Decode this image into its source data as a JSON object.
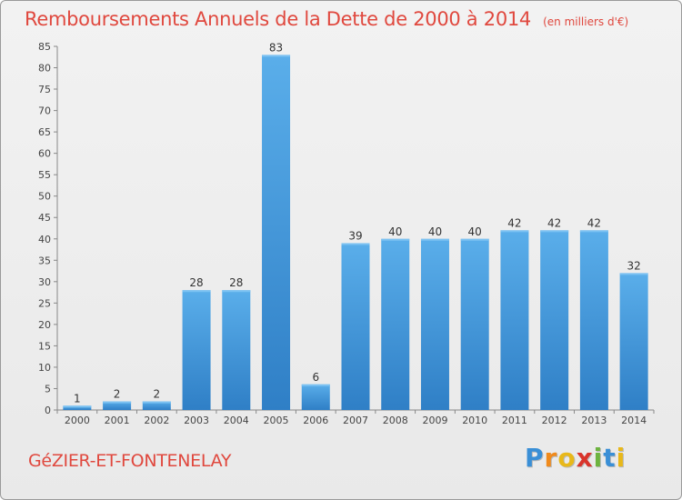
{
  "chart_data": {
    "type": "bar",
    "title": "Remboursements Annuels de la Dette de 2000 à 2014",
    "subtitle": "(en milliers d'€)",
    "xlabel": "",
    "ylabel": "",
    "categories": [
      "2000",
      "2001",
      "2002",
      "2003",
      "2004",
      "2005",
      "2006",
      "2007",
      "2008",
      "2009",
      "2010",
      "2011",
      "2012",
      "2013",
      "2014"
    ],
    "values": [
      1,
      2,
      2,
      28,
      28,
      83,
      6,
      39,
      40,
      40,
      40,
      42,
      42,
      42,
      32
    ],
    "ylim": [
      0,
      85
    ],
    "yticks": [
      0,
      5,
      10,
      15,
      20,
      25,
      30,
      35,
      40,
      45,
      50,
      55,
      60,
      65,
      70,
      75,
      80,
      85
    ],
    "grid": false,
    "legend": "none",
    "bar_color": "#4a9de0"
  },
  "footer": {
    "commune": "GéZIER-ET-FONTENELAY"
  },
  "logo": {
    "letters": [
      "P",
      "r",
      "o",
      "x",
      "i",
      "t",
      "i"
    ],
    "colors": [
      "#3a8fd6",
      "#f08a1c",
      "#e8b81a",
      "#d9342b",
      "#6db33f",
      "#3a8fd6",
      "#e8b81a"
    ]
  }
}
